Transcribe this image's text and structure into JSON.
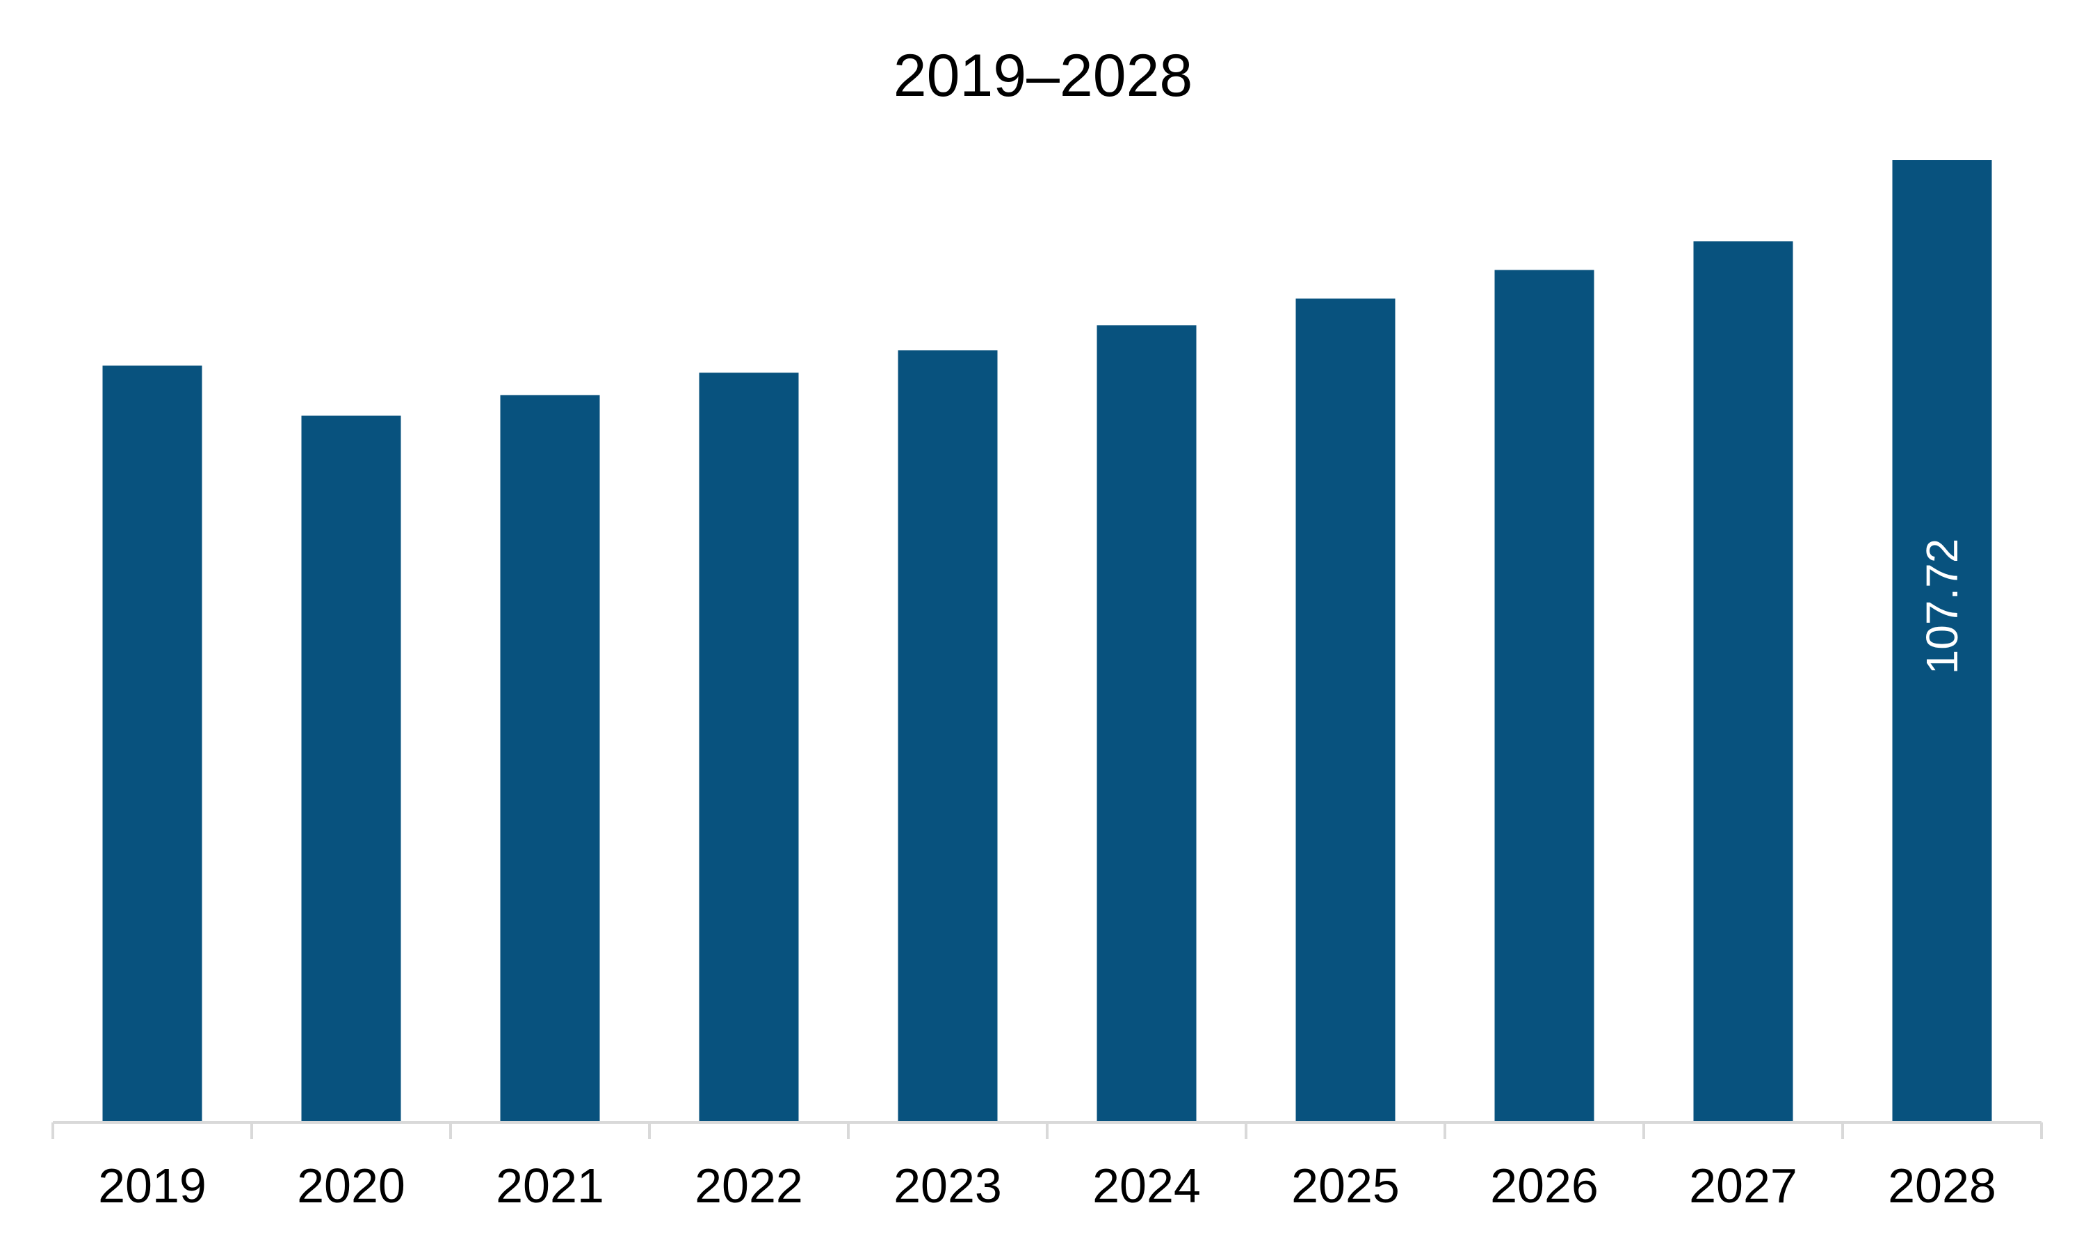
{
  "chart_data": {
    "type": "bar",
    "title": "2019–2028",
    "xlabel": "",
    "ylabel": "",
    "categories": [
      "2019",
      "2020",
      "2021",
      "2022",
      "2023",
      "2024",
      "2025",
      "2026",
      "2027",
      "2028"
    ],
    "values": [
      84.7,
      79.1,
      81.4,
      83.9,
      86.4,
      89.2,
      92.2,
      95.4,
      98.6,
      107.72
    ],
    "data_labels": [
      "",
      "",
      "",
      "",
      "",
      "",
      "",
      "",
      "",
      "107.72"
    ],
    "ylim": [
      0,
      112
    ],
    "grid": false,
    "legend": "none",
    "colors": {
      "bar": "#08527e",
      "axis": "#d9d9d9",
      "data_label": "#ffffff",
      "text": "#000000"
    }
  }
}
